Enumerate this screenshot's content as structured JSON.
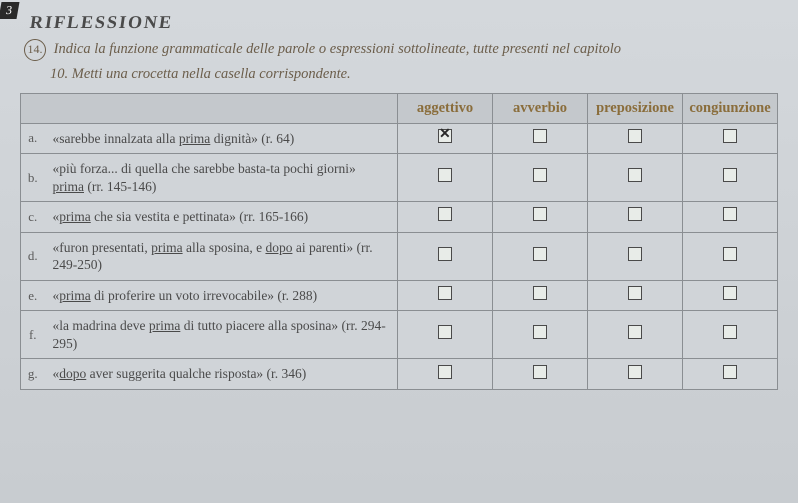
{
  "section_marker": "3",
  "header_fragment": "RIFLESSIONE",
  "instruction_num": "14.",
  "instruction_text_1": "Indica la funzione grammaticale delle parole o espressioni sottolineate, tutte presenti nel capitolo",
  "instruction_text_2": "10. Metti una crocetta nella casella corrispondente.",
  "columns": {
    "c1": "aggettivo",
    "c2": "avverbio",
    "c3": "preposizione",
    "c4": "congiunzione"
  },
  "rows": [
    {
      "label": "a.",
      "text_pre": "«sarebbe innalzata alla ",
      "text_u": "prima",
      "text_post": " dignità» (r. 64)",
      "checked": [
        true,
        false,
        false,
        false
      ]
    },
    {
      "label": "b.",
      "text_pre": "«più forza... di quella che sarebbe basta-ta pochi giorni» ",
      "text_u": "prima",
      "text_post": " (rr. 145-146)",
      "checked": [
        false,
        false,
        false,
        false
      ]
    },
    {
      "label": "c.",
      "text_pre": "«",
      "text_u": "prima",
      "text_post": " che sia vestita e pettinata» (rr. 165-166)",
      "checked": [
        false,
        false,
        false,
        false
      ]
    },
    {
      "label": "d.",
      "text_pre": "«furon presentati, ",
      "text_u": "prima",
      "text_mid": " alla sposina, e ",
      "text_u2": "dopo",
      "text_post": " ai parenti» (rr. 249-250)",
      "checked": [
        false,
        false,
        false,
        false
      ]
    },
    {
      "label": "e.",
      "text_pre": "«",
      "text_u": "prima",
      "text_post": " di proferire un voto irrevocabile» (r. 288)",
      "checked": [
        false,
        false,
        false,
        false
      ]
    },
    {
      "label": "f.",
      "text_pre": "«la madrina deve ",
      "text_u": "prima",
      "text_post": " di tutto piacere alla sposina» (rr. 294-295)",
      "checked": [
        false,
        false,
        false,
        false
      ]
    },
    {
      "label": "g.",
      "text_pre": "«",
      "text_u": "dopo",
      "text_post": " aver suggerita qualche risposta» (r. 346)",
      "checked": [
        false,
        false,
        false,
        false
      ]
    }
  ]
}
